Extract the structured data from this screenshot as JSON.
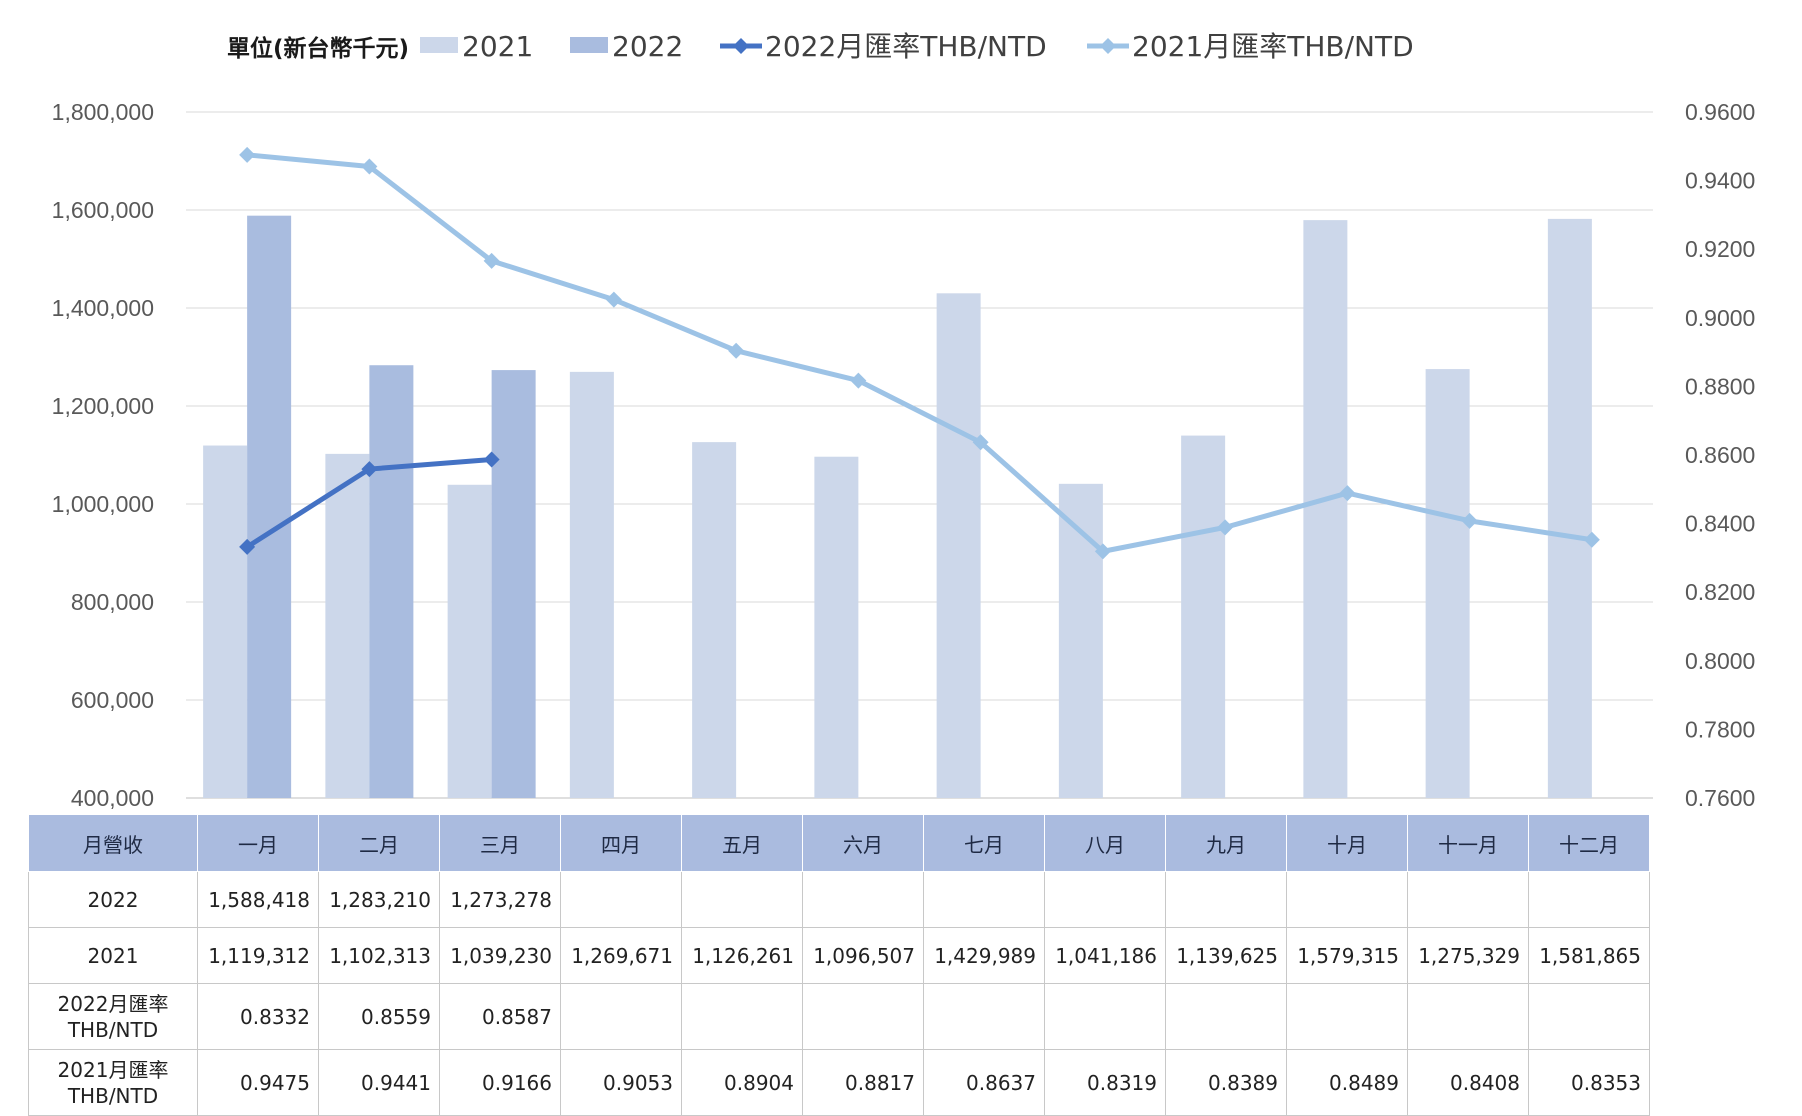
{
  "legend": {
    "unit_label": "單位(新台幣千元)",
    "items": [
      {
        "label": "2021",
        "type": "bar",
        "color": "#ccd7ea"
      },
      {
        "label": "2022",
        "type": "bar",
        "color": "#a9bcdf"
      },
      {
        "label": "2022月匯率THB/NTD",
        "type": "line",
        "color": "#4472c4"
      },
      {
        "label": "2021月匯率THB/NTD",
        "type": "line",
        "color": "#9dc3e6"
      }
    ]
  },
  "chart_data": {
    "type": "bar",
    "categories": [
      "一月",
      "二月",
      "三月",
      "四月",
      "五月",
      "六月",
      "七月",
      "八月",
      "九月",
      "十月",
      "十一月",
      "十二月"
    ],
    "ylim": [
      400000,
      1800000
    ],
    "y_ticks": [
      "400,000",
      "600,000",
      "800,000",
      "1,000,000",
      "1,200,000",
      "1,400,000",
      "1,600,000",
      "1,800,000"
    ],
    "y2lim": [
      0.76,
      0.96
    ],
    "y2_ticks": [
      "0.7600",
      "0.7800",
      "0.8000",
      "0.8200",
      "0.8400",
      "0.8600",
      "0.8800",
      "0.9000",
      "0.9200",
      "0.9400",
      "0.9600"
    ],
    "grid": true,
    "legend_position": "top",
    "series": [
      {
        "name": "2021",
        "type": "bar",
        "axis": "left",
        "color": "#ccd7ea",
        "values": [
          1119312,
          1102313,
          1039230,
          1269671,
          1126261,
          1096507,
          1429989,
          1041186,
          1139625,
          1579315,
          1275329,
          1581865
        ]
      },
      {
        "name": "2022",
        "type": "bar",
        "axis": "left",
        "color": "#a9bcdf",
        "values": [
          1588418,
          1283210,
          1273278,
          null,
          null,
          null,
          null,
          null,
          null,
          null,
          null,
          null
        ]
      },
      {
        "name": "2022月匯率THB/NTD",
        "type": "line",
        "axis": "right",
        "color": "#4472c4",
        "values": [
          0.8332,
          0.8559,
          0.8587,
          null,
          null,
          null,
          null,
          null,
          null,
          null,
          null,
          null
        ]
      },
      {
        "name": "2021月匯率THB/NTD",
        "type": "line",
        "axis": "right",
        "color": "#9dc3e6",
        "values": [
          0.9475,
          0.9441,
          0.9166,
          0.9053,
          0.8904,
          0.8817,
          0.8637,
          0.8319,
          0.8389,
          0.8489,
          0.8408,
          0.8353
        ]
      }
    ]
  },
  "table": {
    "header_label": "月營收",
    "months": [
      "一月",
      "二月",
      "三月",
      "四月",
      "五月",
      "六月",
      "七月",
      "八月",
      "九月",
      "十月",
      "十一月",
      "十二月"
    ],
    "rows": [
      {
        "label_lines": [
          "2022"
        ],
        "cells": [
          "1,588,418",
          "1,283,210",
          "1,273,278",
          "",
          "",
          "",
          "",
          "",
          "",
          "",
          "",
          ""
        ]
      },
      {
        "label_lines": [
          "2021"
        ],
        "cells": [
          "1,119,312",
          "1,102,313",
          "1,039,230",
          "1,269,671",
          "1,126,261",
          "1,096,507",
          "1,429,989",
          "1,041,186",
          "1,139,625",
          "1,579,315",
          "1,275,329",
          "1,581,865"
        ]
      },
      {
        "label_lines": [
          "2022月匯率",
          "THB/NTD"
        ],
        "cells": [
          "0.8332",
          "0.8559",
          "0.8587",
          "",
          "",
          "",
          "",
          "",
          "",
          "",
          "",
          ""
        ]
      },
      {
        "label_lines": [
          "2021月匯率",
          "THB/NTD"
        ],
        "cells": [
          "0.9475",
          "0.9441",
          "0.9166",
          "0.9053",
          "0.8904",
          "0.8817",
          "0.8637",
          "0.8319",
          "0.8389",
          "0.8489",
          "0.8408",
          "0.8353"
        ]
      }
    ]
  }
}
